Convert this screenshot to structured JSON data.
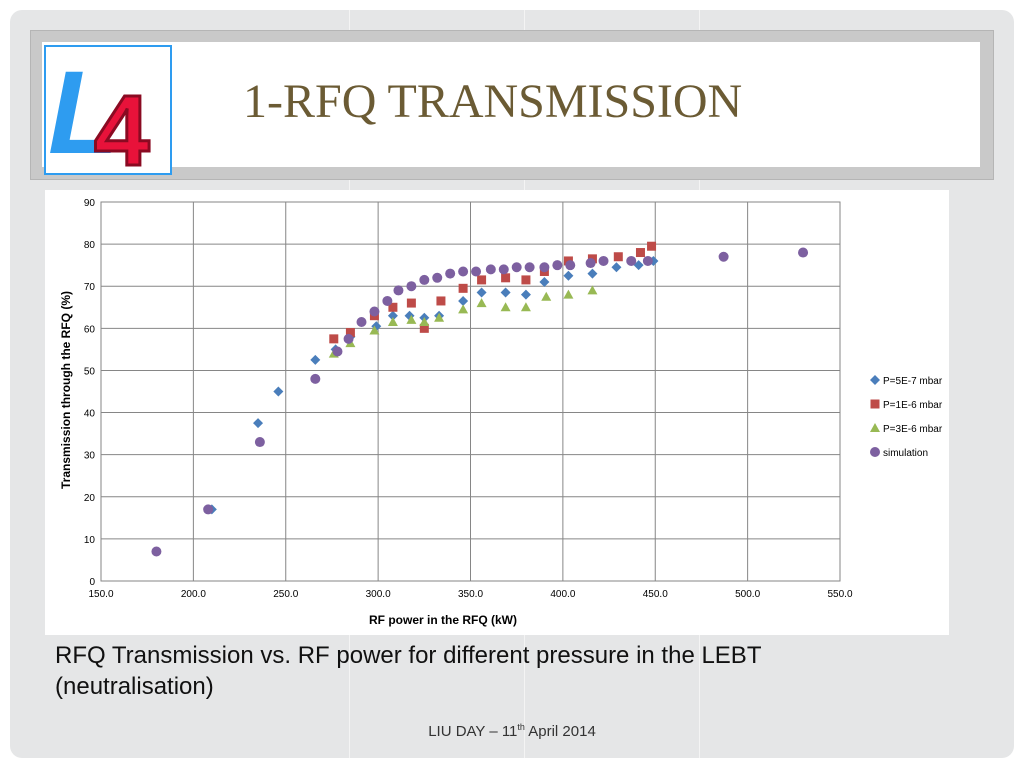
{
  "slide": {
    "title": "1-RFQ TRANSMISSION",
    "logo": {
      "icon": "linac4-logo",
      "letter": "L",
      "digit": "4",
      "colors": {
        "letter": "#2e9cf0",
        "digit": "#e8123a"
      }
    },
    "caption": "RFQ Transmission vs. RF power for different pressure in the LEBT (neutralisation)",
    "footer": {
      "prefix": "LIU DAY – 11",
      "superscript": "th",
      "suffix": " April 2014"
    }
  },
  "chart_data": {
    "type": "scatter",
    "xlabel": "RF power in the RFQ (kW)",
    "ylabel": "Transmission through the RFQ (%)",
    "xlim": [
      150,
      550
    ],
    "ylim": [
      0,
      90
    ],
    "x_ticks": [
      "150.0",
      "200.0",
      "250.0",
      "300.0",
      "350.0",
      "400.0",
      "450.0",
      "500.0",
      "550.0"
    ],
    "y_ticks": [
      "0",
      "10",
      "20",
      "30",
      "40",
      "50",
      "60",
      "70",
      "80",
      "90"
    ],
    "grid": true,
    "legend_position": "right",
    "series": [
      {
        "name": "P=5E-7 mbar",
        "marker": "diamond",
        "color": "#4a7ebb",
        "points": [
          [
            210,
            17
          ],
          [
            235,
            37.5
          ],
          [
            246,
            45
          ],
          [
            266,
            52.5
          ],
          [
            277,
            55
          ],
          [
            285,
            58
          ],
          [
            299,
            60.5
          ],
          [
            308,
            63
          ],
          [
            317,
            63
          ],
          [
            325,
            62.5
          ],
          [
            333,
            63
          ],
          [
            346,
            66.5
          ],
          [
            356,
            68.5
          ],
          [
            369,
            68.5
          ],
          [
            380,
            68
          ],
          [
            390,
            71
          ],
          [
            403,
            72.5
          ],
          [
            416,
            73
          ],
          [
            429,
            74.5
          ],
          [
            441,
            75
          ],
          [
            449,
            76
          ]
        ]
      },
      {
        "name": "P=1E-6 mbar",
        "marker": "square",
        "color": "#be4b48",
        "points": [
          [
            276,
            57.5
          ],
          [
            285,
            59
          ],
          [
            298,
            63
          ],
          [
            308,
            65
          ],
          [
            318,
            66
          ],
          [
            325,
            60
          ],
          [
            334,
            66.5
          ],
          [
            346,
            69.5
          ],
          [
            356,
            71.5
          ],
          [
            369,
            72
          ],
          [
            380,
            71.5
          ],
          [
            390,
            73.5
          ],
          [
            403,
            76
          ],
          [
            416,
            76.5
          ],
          [
            430,
            77
          ],
          [
            442,
            78
          ],
          [
            448,
            79.5
          ]
        ]
      },
      {
        "name": "P=3E-6 mbar",
        "marker": "triangle",
        "color": "#98b954",
        "points": [
          [
            276,
            54
          ],
          [
            285,
            56.5
          ],
          [
            298,
            59.5
          ],
          [
            308,
            61.5
          ],
          [
            318,
            62
          ],
          [
            325,
            61.5
          ],
          [
            333,
            62.5
          ],
          [
            346,
            64.5
          ],
          [
            356,
            66
          ],
          [
            369,
            65
          ],
          [
            380,
            65
          ],
          [
            391,
            67.5
          ],
          [
            403,
            68
          ],
          [
            416,
            69
          ]
        ]
      },
      {
        "name": "simulation",
        "marker": "circle",
        "color": "#7d60a0",
        "points": [
          [
            180,
            7
          ],
          [
            208,
            17
          ],
          [
            236,
            33
          ],
          [
            266,
            48
          ],
          [
            278,
            54.5
          ],
          [
            284,
            57.5
          ],
          [
            291,
            61.5
          ],
          [
            298,
            64
          ],
          [
            305,
            66.5
          ],
          [
            311,
            69
          ],
          [
            318,
            70
          ],
          [
            325,
            71.5
          ],
          [
            332,
            72
          ],
          [
            339,
            73
          ],
          [
            346,
            73.5
          ],
          [
            353,
            73.5
          ],
          [
            361,
            74
          ],
          [
            368,
            74
          ],
          [
            375,
            74.5
          ],
          [
            382,
            74.5
          ],
          [
            390,
            74.5
          ],
          [
            397,
            75
          ],
          [
            404,
            75
          ],
          [
            415,
            75.5
          ],
          [
            422,
            76
          ],
          [
            437,
            76
          ],
          [
            446,
            76
          ],
          [
            487,
            77
          ],
          [
            530,
            78
          ]
        ]
      }
    ]
  }
}
